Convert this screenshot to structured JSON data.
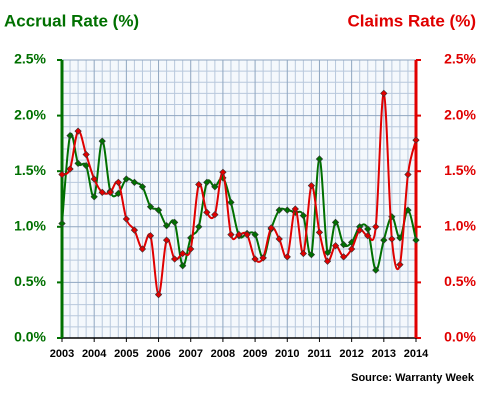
{
  "chart_data": {
    "type": "line",
    "title": "Accrual Rate (%)",
    "title_right": "Claims Rate (%)",
    "source": "Source: Warranty Week",
    "x": [
      2003,
      2003.25,
      2003.5,
      2003.75,
      2004,
      2004.25,
      2004.5,
      2004.75,
      2005,
      2005.25,
      2005.5,
      2005.75,
      2006,
      2006.25,
      2006.5,
      2006.75,
      2007,
      2007.25,
      2007.5,
      2007.75,
      2008,
      2008.25,
      2008.5,
      2008.75,
      2009,
      2009.25,
      2009.5,
      2009.75,
      2010,
      2010.25,
      2010.5,
      2010.75,
      2011,
      2011.25,
      2011.5,
      2011.75,
      2012,
      2012.25,
      2012.5,
      2012.75,
      2013,
      2013.25,
      2013.5,
      2013.75,
      2014
    ],
    "series": [
      {
        "name": "Accrual Rate (%)",
        "color": "#007000",
        "axis": "y",
        "values": [
          1.03,
          1.82,
          1.57,
          1.55,
          1.27,
          1.77,
          1.32,
          1.3,
          1.43,
          1.4,
          1.36,
          1.18,
          1.15,
          1.01,
          1.04,
          0.65,
          0.9,
          1.0,
          1.4,
          1.36,
          1.44,
          1.22,
          0.92,
          0.94,
          0.93,
          0.72,
          0.98,
          1.15,
          1.15,
          1.13,
          1.1,
          0.75,
          1.61,
          0.77,
          1.04,
          0.84,
          0.86,
          1.0,
          0.98,
          0.61,
          0.88,
          1.09,
          0.9,
          1.15,
          0.88
        ]
      },
      {
        "name": "Claims Rate (%)",
        "color": "#e00000",
        "axis": "y2",
        "values": [
          1.47,
          1.52,
          1.86,
          1.65,
          1.43,
          1.31,
          1.31,
          1.4,
          1.07,
          0.97,
          0.8,
          0.92,
          0.39,
          0.88,
          0.71,
          0.76,
          0.8,
          1.38,
          1.13,
          1.11,
          1.49,
          0.93,
          0.93,
          0.93,
          0.71,
          0.72,
          0.99,
          0.89,
          0.73,
          1.16,
          0.76,
          1.37,
          0.95,
          0.69,
          0.83,
          0.73,
          0.8,
          0.97,
          0.92,
          1.0,
          2.2,
          0.89,
          0.66,
          1.47,
          1.78
        ]
      }
    ],
    "xlim": [
      2003,
      2014
    ],
    "xticks": [
      2003,
      2004,
      2005,
      2006,
      2007,
      2008,
      2009,
      2010,
      2011,
      2012,
      2013,
      2014
    ],
    "ylim": [
      0,
      2.5
    ],
    "yticks": [
      {
        "value": 0,
        "label": "0.0%"
      },
      {
        "value": 0.5,
        "label": "0.5%"
      },
      {
        "value": 1,
        "label": "1.0%"
      },
      {
        "value": 1.5,
        "label": "1.5%"
      },
      {
        "value": 2,
        "label": "2.0%"
      },
      {
        "value": 2.5,
        "label": "2.5%"
      }
    ],
    "y2lim": [
      0,
      2.5
    ],
    "y2ticks": [
      {
        "value": 0,
        "label": "0.0%"
      },
      {
        "value": 0.5,
        "label": "0.5%"
      },
      {
        "value": 1,
        "label": "1.0%"
      },
      {
        "value": 1.5,
        "label": "1.5%"
      },
      {
        "value": 2,
        "label": "2.0%"
      },
      {
        "value": 2.5,
        "label": "2.5%"
      }
    ],
    "y_minor_grid": [
      0.1,
      0.2,
      0.3,
      0.4,
      0.6,
      0.7,
      0.8,
      0.9,
      1.1,
      1.2,
      1.3,
      1.4,
      1.6,
      1.7,
      1.8,
      1.9,
      2.1,
      2.2,
      2.3,
      2.4
    ],
    "x_minor_grid": [
      2003.25,
      2003.5,
      2003.75,
      2004.25,
      2004.5,
      2004.75,
      2005.25,
      2005.5,
      2005.75,
      2006.25,
      2006.5,
      2006.75,
      2007.25,
      2007.5,
      2007.75,
      2008.25,
      2008.5,
      2008.75,
      2009.25,
      2009.5,
      2009.75,
      2010.25,
      2010.5,
      2010.75,
      2011.25,
      2011.5,
      2011.75,
      2012.25,
      2012.5,
      2012.75,
      2013.25,
      2013.5,
      2013.75
    ],
    "grid": true
  }
}
